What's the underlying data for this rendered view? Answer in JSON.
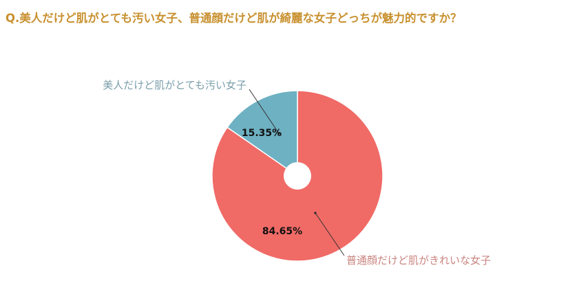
{
  "title": "Q.美人だけど肌がとても汚い女子、普通顔だけど肌が綺麗な女子どっちが魅力的ですか？",
  "colors": {
    "title": "#c8902e",
    "slice_blue": "#6eb1c3",
    "slice_red": "#f06a66",
    "label_blue": "#7a9eaa",
    "label_red": "#c9847f"
  },
  "chart_data": {
    "type": "pie",
    "donut": true,
    "title": "Q.美人だけど肌がとても汚い女子、普通顔だけど肌が綺麗な女子どっちが魅力的ですか？",
    "legend": "none",
    "slices": [
      {
        "label": "普通顔だけど肌がきれいな女子",
        "value": 84.65,
        "value_label": "84.65%",
        "color": "#f06a66"
      },
      {
        "label": "美人だけど肌がとても汚い女子",
        "value": 15.35,
        "value_label": "15.35%",
        "color": "#6eb1c3"
      }
    ]
  }
}
